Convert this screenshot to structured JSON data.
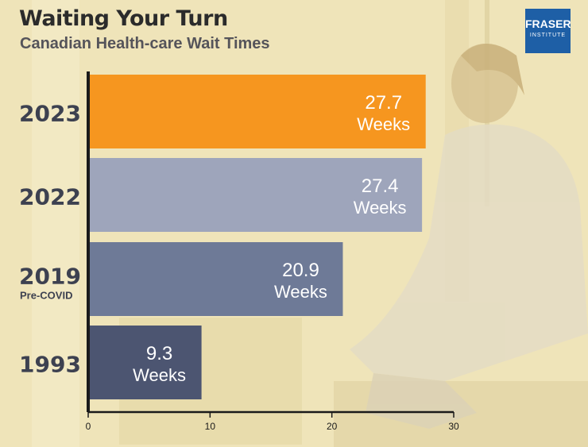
{
  "header": {
    "title": "Waiting Your Turn",
    "subtitle": "Canadian Health-care Wait Times"
  },
  "logo": {
    "line1": "FRASER",
    "line2": "INSTITUTE",
    "color": "#1e5fa6"
  },
  "colors": {
    "background": "#efe4b9",
    "bar_2023": "#f6961f",
    "bar_2022": "#9ea5bb",
    "bar_2019": "#6e7a97",
    "bar_1993": "#4c5571",
    "year_label": "#3d4150"
  },
  "chart_data": {
    "type": "bar",
    "orientation": "horizontal",
    "categories": [
      "2023",
      "2022",
      "2019",
      "1993"
    ],
    "category_sublabels": [
      "",
      "",
      "Pre-COVID",
      ""
    ],
    "values": [
      27.7,
      27.4,
      20.9,
      9.3
    ],
    "value_labels": [
      "27.7",
      "27.4",
      "20.9",
      "9.3"
    ],
    "unit_label": "Weeks",
    "xlim": [
      0,
      30
    ],
    "xticks": [
      0,
      10,
      20,
      30
    ],
    "grid": false,
    "legend": "none"
  }
}
